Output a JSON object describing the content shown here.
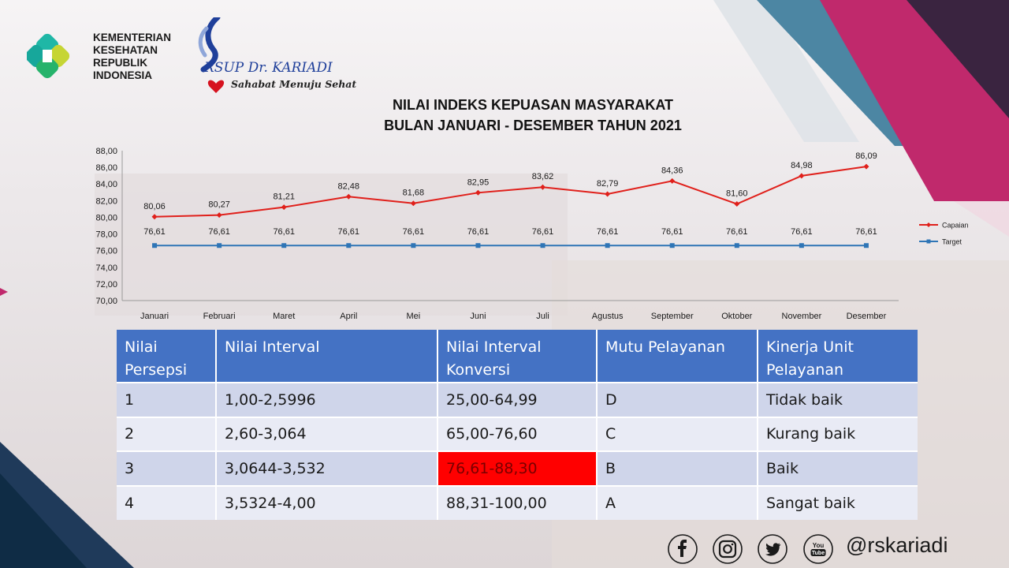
{
  "header": {
    "kemenkes_lines": [
      "KEMENTERIAN",
      "KESEHATAN",
      "REPUBLIK",
      "INDONESIA"
    ],
    "kariadi_name": "RSUP Dr. KARIADI",
    "kariadi_slogan": "Sahabat Menuju Sehat"
  },
  "title_lines": [
    "NILAI INDEKS KEPUASAN MASYARAKAT",
    "BULAN JANUARI - DESEMBER TAHUN 2021"
  ],
  "chart_data": {
    "type": "line",
    "title": "NILAI INDEKS KEPUASAN MASYARAKAT BULAN JANUARI - DESEMBER TAHUN 2021",
    "categories": [
      "Januari",
      "Februari",
      "Maret",
      "April",
      "Mei",
      "Juni",
      "Juli",
      "Agustus",
      "September",
      "Oktober",
      "November",
      "Desember"
    ],
    "series": [
      {
        "name": "Capaian",
        "color": "#e0201b",
        "marker": "diamond",
        "values": [
          80.06,
          80.27,
          81.21,
          82.48,
          81.68,
          82.95,
          83.62,
          82.79,
          84.36,
          81.6,
          84.98,
          86.09
        ],
        "labels": [
          "80,06",
          "80,27",
          "81,21",
          "82,48",
          "81,68",
          "82,95",
          "83,62",
          "82,79",
          "84,36",
          "81,60",
          "84,98",
          "86,09"
        ]
      },
      {
        "name": "Target",
        "color": "#2e75b6",
        "marker": "square",
        "values": [
          76.61,
          76.61,
          76.61,
          76.61,
          76.61,
          76.61,
          76.61,
          76.61,
          76.61,
          76.61,
          76.61,
          76.61
        ],
        "labels": [
          "76,61",
          "76,61",
          "76,61",
          "76,61",
          "76,61",
          "76,61",
          "76,61",
          "76,61",
          "76,61",
          "76,61",
          "76,61",
          "76,61"
        ]
      }
    ],
    "ylim": [
      70,
      88
    ],
    "yticks": [
      "70,00",
      "72,00",
      "74,00",
      "76,00",
      "78,00",
      "80,00",
      "82,00",
      "84,00",
      "86,00",
      "88,00"
    ],
    "legend_position": "right",
    "grid": false
  },
  "table": {
    "headers": [
      [
        "Nilai",
        "Persepsi"
      ],
      [
        "Nilai Interval",
        ""
      ],
      [
        "Nilai Interval",
        "Konversi"
      ],
      [
        "Mutu Pelayanan",
        ""
      ],
      [
        "Kinerja Unit",
        "Pelayanan"
      ]
    ],
    "rows": [
      [
        "1",
        "1,00-2,5996",
        "25,00-64,99",
        "D",
        "Tidak baik"
      ],
      [
        "2",
        "2,60-3,064",
        "65,00-76,60",
        "C",
        "Kurang baik"
      ],
      [
        "3",
        "3,0644-3,532",
        "76,61-88,30",
        "B",
        "Baik"
      ],
      [
        "4",
        "3,5324-4,00",
        "88,31-100,00",
        "A",
        "Sangat baik"
      ]
    ],
    "highlight_color": "#ff0000"
  },
  "footer": {
    "social_icons": [
      "facebook-icon",
      "instagram-icon",
      "twitter-icon",
      "youtube-icon"
    ],
    "youtube_text": "You Tube",
    "handle": "@rskariadi"
  }
}
